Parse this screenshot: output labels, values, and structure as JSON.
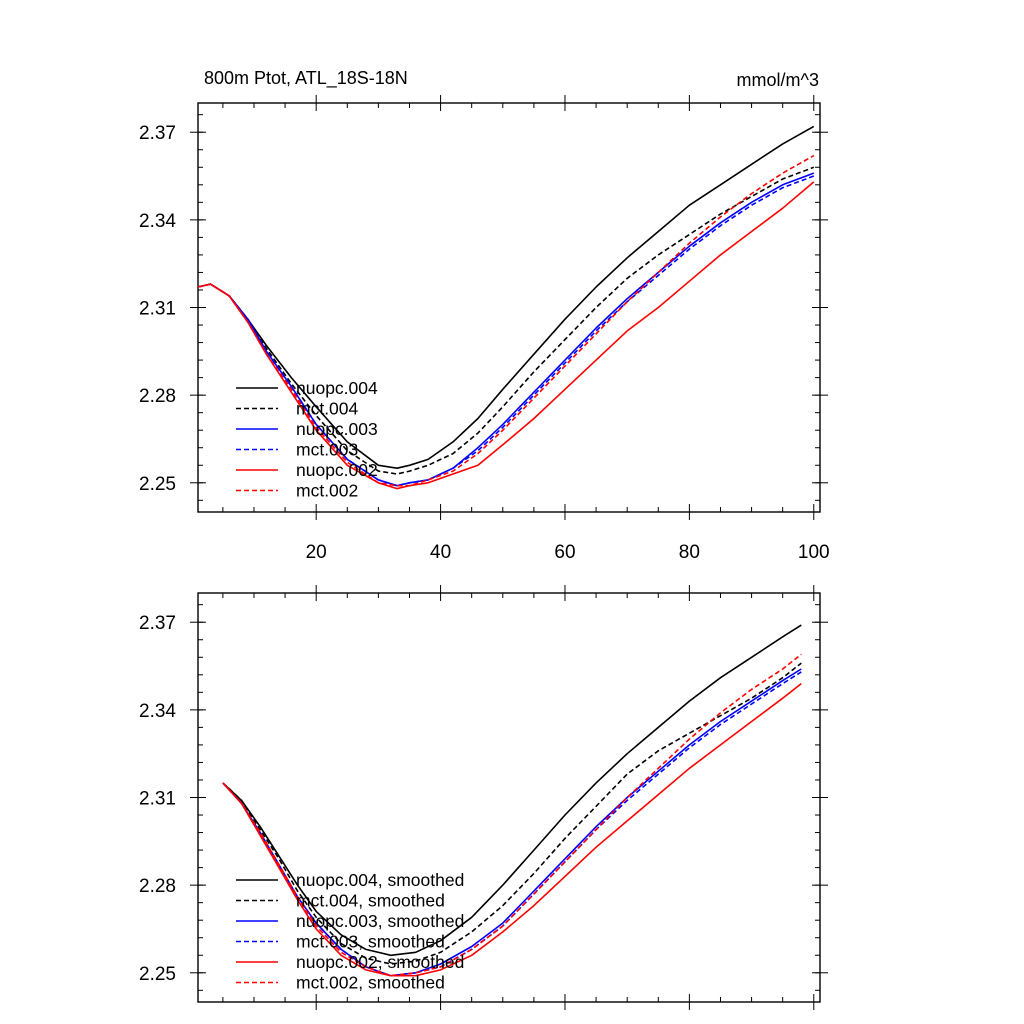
{
  "chart_data": [
    {
      "type": "line",
      "title": "800m Ptot, ATL_18S-18N",
      "unit_label": "mmol/m^3",
      "xlabel": "",
      "ylabel": "",
      "xlim": [
        1,
        101
      ],
      "ylim": [
        2.24,
        2.38
      ],
      "xticks": [
        20,
        40,
        60,
        80,
        100
      ],
      "xtick_labels": [
        "20",
        "40",
        "60",
        "80",
        "100"
      ],
      "yticks": [
        2.25,
        2.28,
        2.31,
        2.34,
        2.37
      ],
      "ytick_labels": [
        "2.25",
        "2.28",
        "2.31",
        "2.34",
        "2.37"
      ],
      "show_xtick_labels": true,
      "grid": false,
      "legend_position": "bottom-left",
      "series": [
        {
          "name": "nuopc.004",
          "color": "#000000",
          "dash": "solid",
          "x": [
            1,
            3,
            6,
            9,
            12,
            16,
            20,
            25,
            30,
            33,
            35,
            38,
            42,
            46,
            50,
            55,
            60,
            65,
            70,
            75,
            80,
            85,
            90,
            95,
            100
          ],
          "y": [
            2.317,
            2.318,
            2.314,
            2.306,
            2.297,
            2.286,
            2.276,
            2.264,
            2.256,
            2.255,
            2.256,
            2.258,
            2.264,
            2.272,
            2.282,
            2.294,
            2.306,
            2.317,
            2.327,
            2.336,
            2.345,
            2.352,
            2.359,
            2.366,
            2.372
          ]
        },
        {
          "name": "mct.004",
          "color": "#000000",
          "dash": "dashed",
          "x": [
            1,
            3,
            6,
            9,
            12,
            16,
            20,
            25,
            30,
            33,
            35,
            38,
            42,
            46,
            50,
            55,
            60,
            65,
            70,
            75,
            80,
            85,
            90,
            95,
            100
          ],
          "y": [
            2.317,
            2.318,
            2.314,
            2.306,
            2.296,
            2.284,
            2.273,
            2.261,
            2.254,
            2.253,
            2.254,
            2.256,
            2.26,
            2.267,
            2.276,
            2.288,
            2.299,
            2.31,
            2.32,
            2.328,
            2.335,
            2.342,
            2.348,
            2.354,
            2.358
          ]
        },
        {
          "name": "nuopc.003",
          "color": "#0000ff",
          "dash": "solid",
          "x": [
            1,
            3,
            6,
            9,
            12,
            16,
            20,
            25,
            30,
            33,
            35,
            38,
            42,
            46,
            50,
            55,
            60,
            65,
            70,
            75,
            80,
            85,
            90,
            95,
            100
          ],
          "y": [
            2.317,
            2.318,
            2.314,
            2.306,
            2.295,
            2.283,
            2.27,
            2.258,
            2.251,
            2.249,
            2.25,
            2.251,
            2.255,
            2.262,
            2.27,
            2.281,
            2.292,
            2.303,
            2.313,
            2.322,
            2.331,
            2.339,
            2.346,
            2.352,
            2.356
          ]
        },
        {
          "name": "mct.003",
          "color": "#0000ff",
          "dash": "dashed",
          "x": [
            1,
            3,
            6,
            9,
            12,
            16,
            20,
            25,
            30,
            33,
            35,
            38,
            42,
            46,
            50,
            55,
            60,
            65,
            70,
            75,
            80,
            85,
            90,
            95,
            100
          ],
          "y": [
            2.317,
            2.318,
            2.314,
            2.306,
            2.295,
            2.283,
            2.27,
            2.258,
            2.251,
            2.249,
            2.25,
            2.251,
            2.255,
            2.261,
            2.269,
            2.28,
            2.291,
            2.302,
            2.312,
            2.321,
            2.33,
            2.338,
            2.345,
            2.351,
            2.355
          ]
        },
        {
          "name": "nuopc.002",
          "color": "#ff0000",
          "dash": "solid",
          "x": [
            1,
            3,
            6,
            9,
            12,
            16,
            20,
            25,
            30,
            33,
            35,
            38,
            42,
            46,
            50,
            55,
            60,
            65,
            70,
            75,
            80,
            85,
            90,
            95,
            100
          ],
          "y": [
            2.317,
            2.318,
            2.314,
            2.305,
            2.294,
            2.281,
            2.268,
            2.256,
            2.25,
            2.248,
            2.249,
            2.25,
            2.253,
            2.256,
            2.263,
            2.272,
            2.282,
            2.292,
            2.302,
            2.31,
            2.319,
            2.328,
            2.336,
            2.344,
            2.353
          ]
        },
        {
          "name": "mct.002",
          "color": "#ff0000",
          "dash": "dashed",
          "x": [
            1,
            3,
            6,
            9,
            12,
            16,
            20,
            25,
            30,
            33,
            35,
            38,
            42,
            46,
            50,
            55,
            60,
            65,
            70,
            75,
            80,
            85,
            90,
            95,
            100
          ],
          "y": [
            2.317,
            2.318,
            2.314,
            2.305,
            2.294,
            2.282,
            2.269,
            2.257,
            2.25,
            2.249,
            2.249,
            2.251,
            2.254,
            2.26,
            2.268,
            2.279,
            2.29,
            2.301,
            2.312,
            2.322,
            2.332,
            2.341,
            2.349,
            2.356,
            2.362
          ]
        }
      ]
    },
    {
      "type": "line",
      "title": "",
      "unit_label": "",
      "xlabel": "",
      "ylabel": "",
      "xlim": [
        1,
        101
      ],
      "ylim": [
        2.24,
        2.38
      ],
      "xticks": [
        20,
        40,
        60,
        80,
        100
      ],
      "xtick_labels": [
        "20",
        "40",
        "60",
        "80",
        "100"
      ],
      "yticks": [
        2.25,
        2.28,
        2.31,
        2.34,
        2.37
      ],
      "ytick_labels": [
        "2.25",
        "2.28",
        "2.31",
        "2.34",
        "2.37"
      ],
      "show_xtick_labels": false,
      "grid": false,
      "legend_position": "bottom-left",
      "series": [
        {
          "name": "nuopc.004, smoothed",
          "color": "#000000",
          "dash": "solid",
          "x": [
            5,
            8,
            11,
            14,
            17,
            20,
            24,
            28,
            32,
            36,
            40,
            45,
            50,
            55,
            60,
            65,
            70,
            75,
            80,
            85,
            90,
            95,
            98
          ],
          "y": [
            2.315,
            2.309,
            2.3,
            2.29,
            2.28,
            2.271,
            2.263,
            2.258,
            2.256,
            2.257,
            2.261,
            2.269,
            2.28,
            2.292,
            2.304,
            2.315,
            2.325,
            2.334,
            2.343,
            2.351,
            2.358,
            2.365,
            2.369
          ]
        },
        {
          "name": "mct.004, smoothed",
          "color": "#000000",
          "dash": "dashed",
          "x": [
            5,
            8,
            11,
            14,
            17,
            20,
            24,
            28,
            32,
            36,
            40,
            45,
            50,
            55,
            60,
            65,
            70,
            75,
            80,
            85,
            90,
            95,
            98
          ],
          "y": [
            2.315,
            2.309,
            2.299,
            2.289,
            2.278,
            2.269,
            2.26,
            2.255,
            2.253,
            2.254,
            2.257,
            2.264,
            2.273,
            2.284,
            2.296,
            2.307,
            2.318,
            2.326,
            2.332,
            2.338,
            2.344,
            2.351,
            2.356
          ]
        },
        {
          "name": "nuopc.003, smoothed",
          "color": "#0000ff",
          "dash": "solid",
          "x": [
            5,
            8,
            11,
            14,
            17,
            20,
            24,
            28,
            32,
            36,
            40,
            45,
            50,
            55,
            60,
            65,
            70,
            75,
            80,
            85,
            90,
            95,
            98
          ],
          "y": [
            2.315,
            2.308,
            2.298,
            2.287,
            2.276,
            2.267,
            2.258,
            2.252,
            2.249,
            2.25,
            2.253,
            2.259,
            2.267,
            2.278,
            2.289,
            2.3,
            2.31,
            2.319,
            2.328,
            2.336,
            2.343,
            2.35,
            2.354
          ]
        },
        {
          "name": "mct.003, smoothed",
          "color": "#0000ff",
          "dash": "dashed",
          "x": [
            5,
            8,
            11,
            14,
            17,
            20,
            24,
            28,
            32,
            36,
            40,
            45,
            50,
            55,
            60,
            65,
            70,
            75,
            80,
            85,
            90,
            95,
            98
          ],
          "y": [
            2.315,
            2.308,
            2.298,
            2.287,
            2.276,
            2.267,
            2.258,
            2.252,
            2.249,
            2.25,
            2.252,
            2.258,
            2.266,
            2.277,
            2.288,
            2.299,
            2.309,
            2.318,
            2.327,
            2.335,
            2.342,
            2.349,
            2.353
          ]
        },
        {
          "name": "nuopc.002, smoothed",
          "color": "#ff0000",
          "dash": "solid",
          "x": [
            5,
            8,
            11,
            14,
            17,
            20,
            24,
            28,
            32,
            36,
            40,
            45,
            50,
            55,
            60,
            65,
            70,
            75,
            80,
            85,
            90,
            95,
            98
          ],
          "y": [
            2.315,
            2.308,
            2.297,
            2.286,
            2.275,
            2.265,
            2.256,
            2.251,
            2.249,
            2.249,
            2.251,
            2.256,
            2.264,
            2.273,
            2.283,
            2.293,
            2.302,
            2.311,
            2.32,
            2.328,
            2.336,
            2.344,
            2.349
          ]
        },
        {
          "name": "mct.002, smoothed",
          "color": "#ff0000",
          "dash": "dashed",
          "x": [
            5,
            8,
            11,
            14,
            17,
            20,
            24,
            28,
            32,
            36,
            40,
            45,
            50,
            55,
            60,
            65,
            70,
            75,
            80,
            85,
            90,
            95,
            98
          ],
          "y": [
            2.315,
            2.308,
            2.298,
            2.287,
            2.276,
            2.266,
            2.257,
            2.252,
            2.249,
            2.25,
            2.252,
            2.258,
            2.266,
            2.277,
            2.288,
            2.299,
            2.31,
            2.32,
            2.33,
            2.339,
            2.347,
            2.354,
            2.359
          ]
        }
      ]
    }
  ]
}
